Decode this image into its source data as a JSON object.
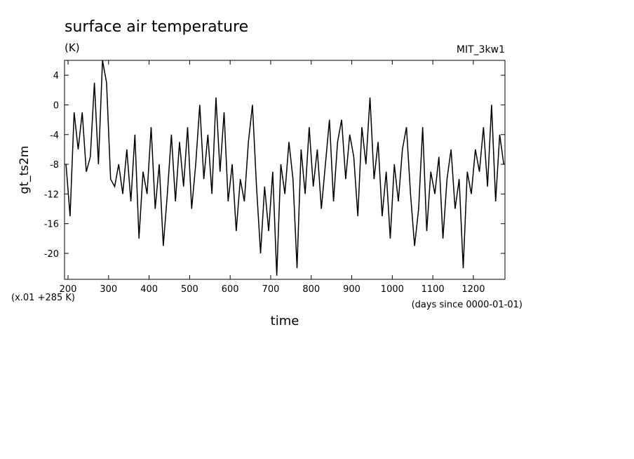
{
  "chart_data": {
    "type": "line",
    "title": "surface air temperature",
    "units": "(K)",
    "model": "MIT_3kw1",
    "y_label": "gt_ts2m",
    "x_label": "time",
    "y_note": "(x.01 +285 K)",
    "x_note": "(days since 0000-01-01)",
    "x": [
      195,
      205,
      215,
      225,
      235,
      245,
      255,
      265,
      275,
      285,
      295,
      305,
      315,
      325,
      335,
      345,
      355,
      365,
      375,
      385,
      395,
      405,
      415,
      425,
      435,
      445,
      455,
      465,
      475,
      485,
      495,
      505,
      515,
      525,
      535,
      545,
      555,
      565,
      575,
      585,
      595,
      605,
      615,
      625,
      635,
      645,
      655,
      665,
      675,
      685,
      695,
      705,
      715,
      725,
      735,
      745,
      755,
      765,
      775,
      785,
      795,
      805,
      815,
      825,
      835,
      845,
      855,
      865,
      875,
      885,
      895,
      905,
      915,
      925,
      935,
      945,
      955,
      965,
      975,
      985,
      995,
      1005,
      1015,
      1025,
      1035,
      1045,
      1055,
      1065,
      1075,
      1085,
      1095,
      1105,
      1115,
      1125,
      1135,
      1145,
      1155,
      1165,
      1175,
      1185,
      1195,
      1205,
      1215,
      1225,
      1235,
      1245,
      1255,
      1265,
      1275
    ],
    "series": [
      {
        "name": "gt_ts2m",
        "color": "#000000",
        "values": [
          -8,
          -15,
          -1,
          -6,
          -1,
          -9,
          -7,
          3,
          -8,
          6,
          3,
          -10,
          -11,
          -8,
          -12,
          -6,
          -13,
          -4,
          -18,
          -9,
          -12,
          -3,
          -14,
          -8,
          -19,
          -12,
          -4,
          -13,
          -5,
          -11,
          -3,
          -14,
          -8,
          0,
          -10,
          -4,
          -12,
          1,
          -9,
          -1,
          -13,
          -8,
          -17,
          -10,
          -13,
          -5,
          0,
          -11,
          -20,
          -11,
          -17,
          -9,
          -23,
          -8,
          -12,
          -5,
          -10,
          -22,
          -6,
          -12,
          -3,
          -11,
          -6,
          -14,
          -8,
          -2,
          -13,
          -5,
          -2,
          -10,
          -4,
          -7,
          -15,
          -3,
          -8,
          1,
          -10,
          -5,
          -15,
          -9,
          -18,
          -8,
          -13,
          -6,
          -3,
          -12,
          -19,
          -14,
          -3,
          -17,
          -9,
          -12,
          -7,
          -18,
          -10,
          -6,
          -14,
          -10,
          -22,
          -9,
          -12,
          -6,
          -9,
          -3,
          -11,
          0,
          -13,
          -4,
          -8
        ]
      }
    ],
    "xlim": [
      191.3,
      1278
    ],
    "ylim": [
      -23.5,
      6
    ],
    "xticks": [
      200,
      300,
      400,
      500,
      600,
      700,
      800,
      900,
      1000,
      1100,
      1200
    ],
    "yticks": [
      4,
      0,
      -4,
      -8,
      -12,
      -16,
      -20
    ]
  }
}
